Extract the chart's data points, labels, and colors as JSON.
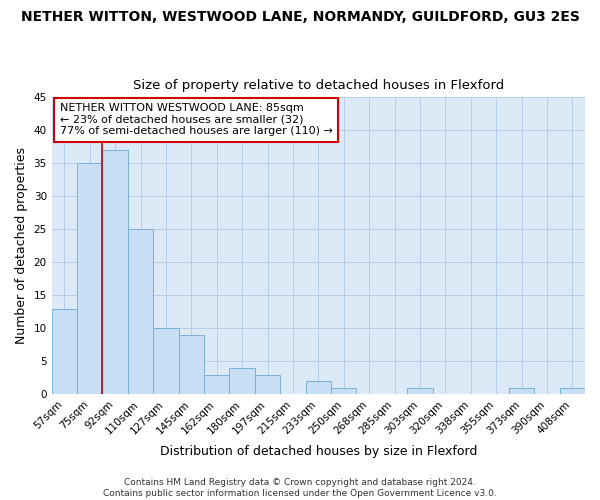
{
  "title": "NETHER WITTON, WESTWOOD LANE, NORMANDY, GUILDFORD, GU3 2ES",
  "subtitle": "Size of property relative to detached houses in Flexford",
  "xlabel": "Distribution of detached houses by size in Flexford",
  "ylabel": "Number of detached properties",
  "categories": [
    "57sqm",
    "75sqm",
    "92sqm",
    "110sqm",
    "127sqm",
    "145sqm",
    "162sqm",
    "180sqm",
    "197sqm",
    "215sqm",
    "233sqm",
    "250sqm",
    "268sqm",
    "285sqm",
    "303sqm",
    "320sqm",
    "338sqm",
    "355sqm",
    "373sqm",
    "390sqm",
    "408sqm"
  ],
  "values": [
    13,
    35,
    37,
    25,
    10,
    9,
    3,
    4,
    3,
    0,
    2,
    1,
    0,
    0,
    1,
    0,
    0,
    0,
    1,
    0,
    1
  ],
  "bar_color": "#c9dff5",
  "bar_edge_color": "#7bafd4",
  "vline_x": 1.5,
  "vline_color": "#cc0000",
  "ylim": [
    0,
    45
  ],
  "yticks": [
    0,
    5,
    10,
    15,
    20,
    25,
    30,
    35,
    40,
    45
  ],
  "annotation_text": "NETHER WITTON WESTWOOD LANE: 85sqm\n← 23% of detached houses are smaller (32)\n77% of semi-detached houses are larger (110) →",
  "annotation_box_color": "#ffffff",
  "annotation_box_edge": "#cc0000",
  "footer_text": "Contains HM Land Registry data © Crown copyright and database right 2024.\nContains public sector information licensed under the Open Government Licence v3.0.",
  "bg_color": "#dce9f7",
  "fig_bg_color": "#ffffff",
  "grid_color": "#b0c8e8",
  "title_fontsize": 10,
  "subtitle_fontsize": 9.5,
  "axis_label_fontsize": 9,
  "tick_fontsize": 7.5,
  "annotation_fontsize": 8,
  "footer_fontsize": 6.5
}
